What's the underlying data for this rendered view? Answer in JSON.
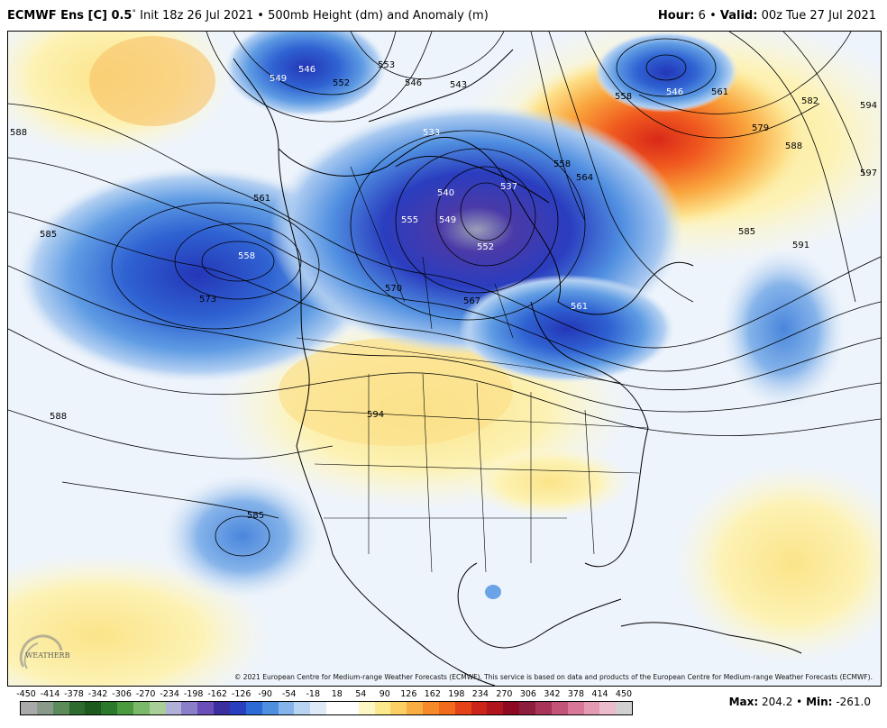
{
  "header": {
    "model": "ECMWF Ens [C] 0.5",
    "degree_mark": "°",
    "init": "Init 18z 26 Jul 2021",
    "separator": "•",
    "field": "500mb Height (dm) and Anomaly (m)",
    "hour_label": "Hour:",
    "hour_value": "6",
    "valid_label": "Valid:",
    "valid_value": "00z Tue 27 Jul 2021"
  },
  "map": {
    "region": "North America",
    "contour_labels": [
      "549",
      "546",
      "552",
      "553",
      "546",
      "543",
      "546",
      "561",
      "582",
      "594",
      "597",
      "591",
      "585",
      "579",
      "588",
      "558",
      "564",
      "558",
      "588",
      "585",
      "561",
      "558",
      "573",
      "555",
      "549",
      "552",
      "540",
      "537",
      "533",
      "570",
      "567",
      "561",
      "588",
      "594",
      "585"
    ]
  },
  "copyright": "© 2021 European Centre for Medium-range Weather Forecasts (ECMWF). This service is based on data and products of the European Centre for Medium-range Weather Forecasts (ECMWF).",
  "logo": {
    "text": "WEATHERBELL"
  },
  "colorbar": {
    "labels": [
      "-450",
      "-414",
      "-378",
      "-342",
      "-306",
      "-270",
      "-234",
      "-198",
      "-162",
      "-126",
      "-90",
      "-54",
      "-18",
      "18",
      "54",
      "90",
      "126",
      "162",
      "198",
      "234",
      "270",
      "306",
      "342",
      "378",
      "414",
      "450"
    ],
    "colors": [
      "#a9a9a9",
      "#8a9a8a",
      "#5b8a5b",
      "#2f6b2f",
      "#1d5a1d",
      "#2b7a2b",
      "#4c9a3f",
      "#7ab86a",
      "#a8cf98",
      "#b0b0d8",
      "#8a7fc8",
      "#6a4fb8",
      "#3b2fa0",
      "#2a3ec0",
      "#2d6ad6",
      "#4e8fe0",
      "#84b4ea",
      "#b8d4f2",
      "#dfeaf8",
      "#ffffff",
      "#ffffff",
      "#fdf7c4",
      "#fbe98c",
      "#fbcf64",
      "#f9ad42",
      "#f68a2a",
      "#f26a1c",
      "#e4431a",
      "#cc2418",
      "#b0141c",
      "#8e0a22",
      "#8c1f3d",
      "#a8345a",
      "#c25478",
      "#d87798",
      "#e49ab4",
      "#ecbccc",
      "#d0d0d0"
    ],
    "max_label": "Max:",
    "max_value": "204.2",
    "min_label": "Min:",
    "min_value": "-261.0"
  }
}
